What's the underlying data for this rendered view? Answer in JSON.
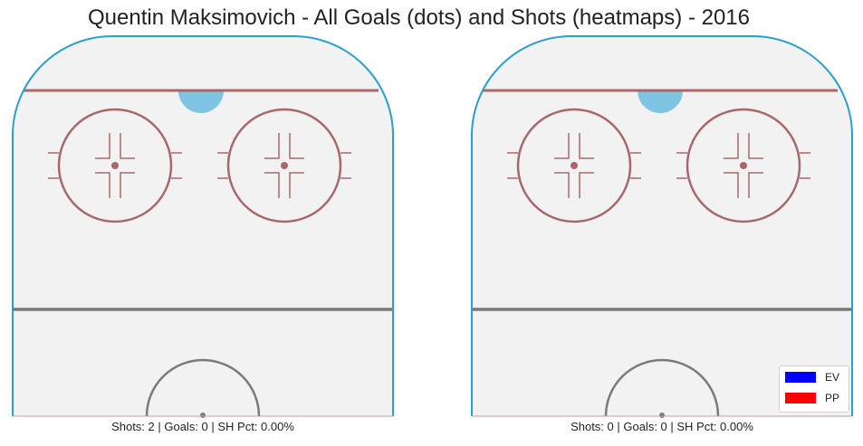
{
  "chart_data": {
    "type": "heatmap",
    "title": "Quentin Maksimovich - All Goals (dots) and Shots (heatmaps) - 2016",
    "panels": [
      {
        "caption": "Shots: 2 | Goals: 0 | SH Pct: 0.00%",
        "shots": 2,
        "goals": 0,
        "sh_pct": "0.00%",
        "goal_points": []
      },
      {
        "caption": "Shots: 0 | Goals: 0 | SH Pct: 0.00%",
        "shots": 0,
        "goals": 0,
        "sh_pct": "0.00%",
        "goal_points": []
      }
    ],
    "legend": {
      "placement": "bottom-right",
      "entries": [
        {
          "label": "EV",
          "color": "#0000ff"
        },
        {
          "label": "PP",
          "color": "#ff0000"
        }
      ]
    },
    "grid": false
  },
  "colors": {
    "ice": "#f2f2f2",
    "boards": "#2a9fd0",
    "goal_line": "#a8686b",
    "faceoff": "#a8686b",
    "blue_line": "#7a7a7a",
    "crease": "#7fc4e2"
  }
}
